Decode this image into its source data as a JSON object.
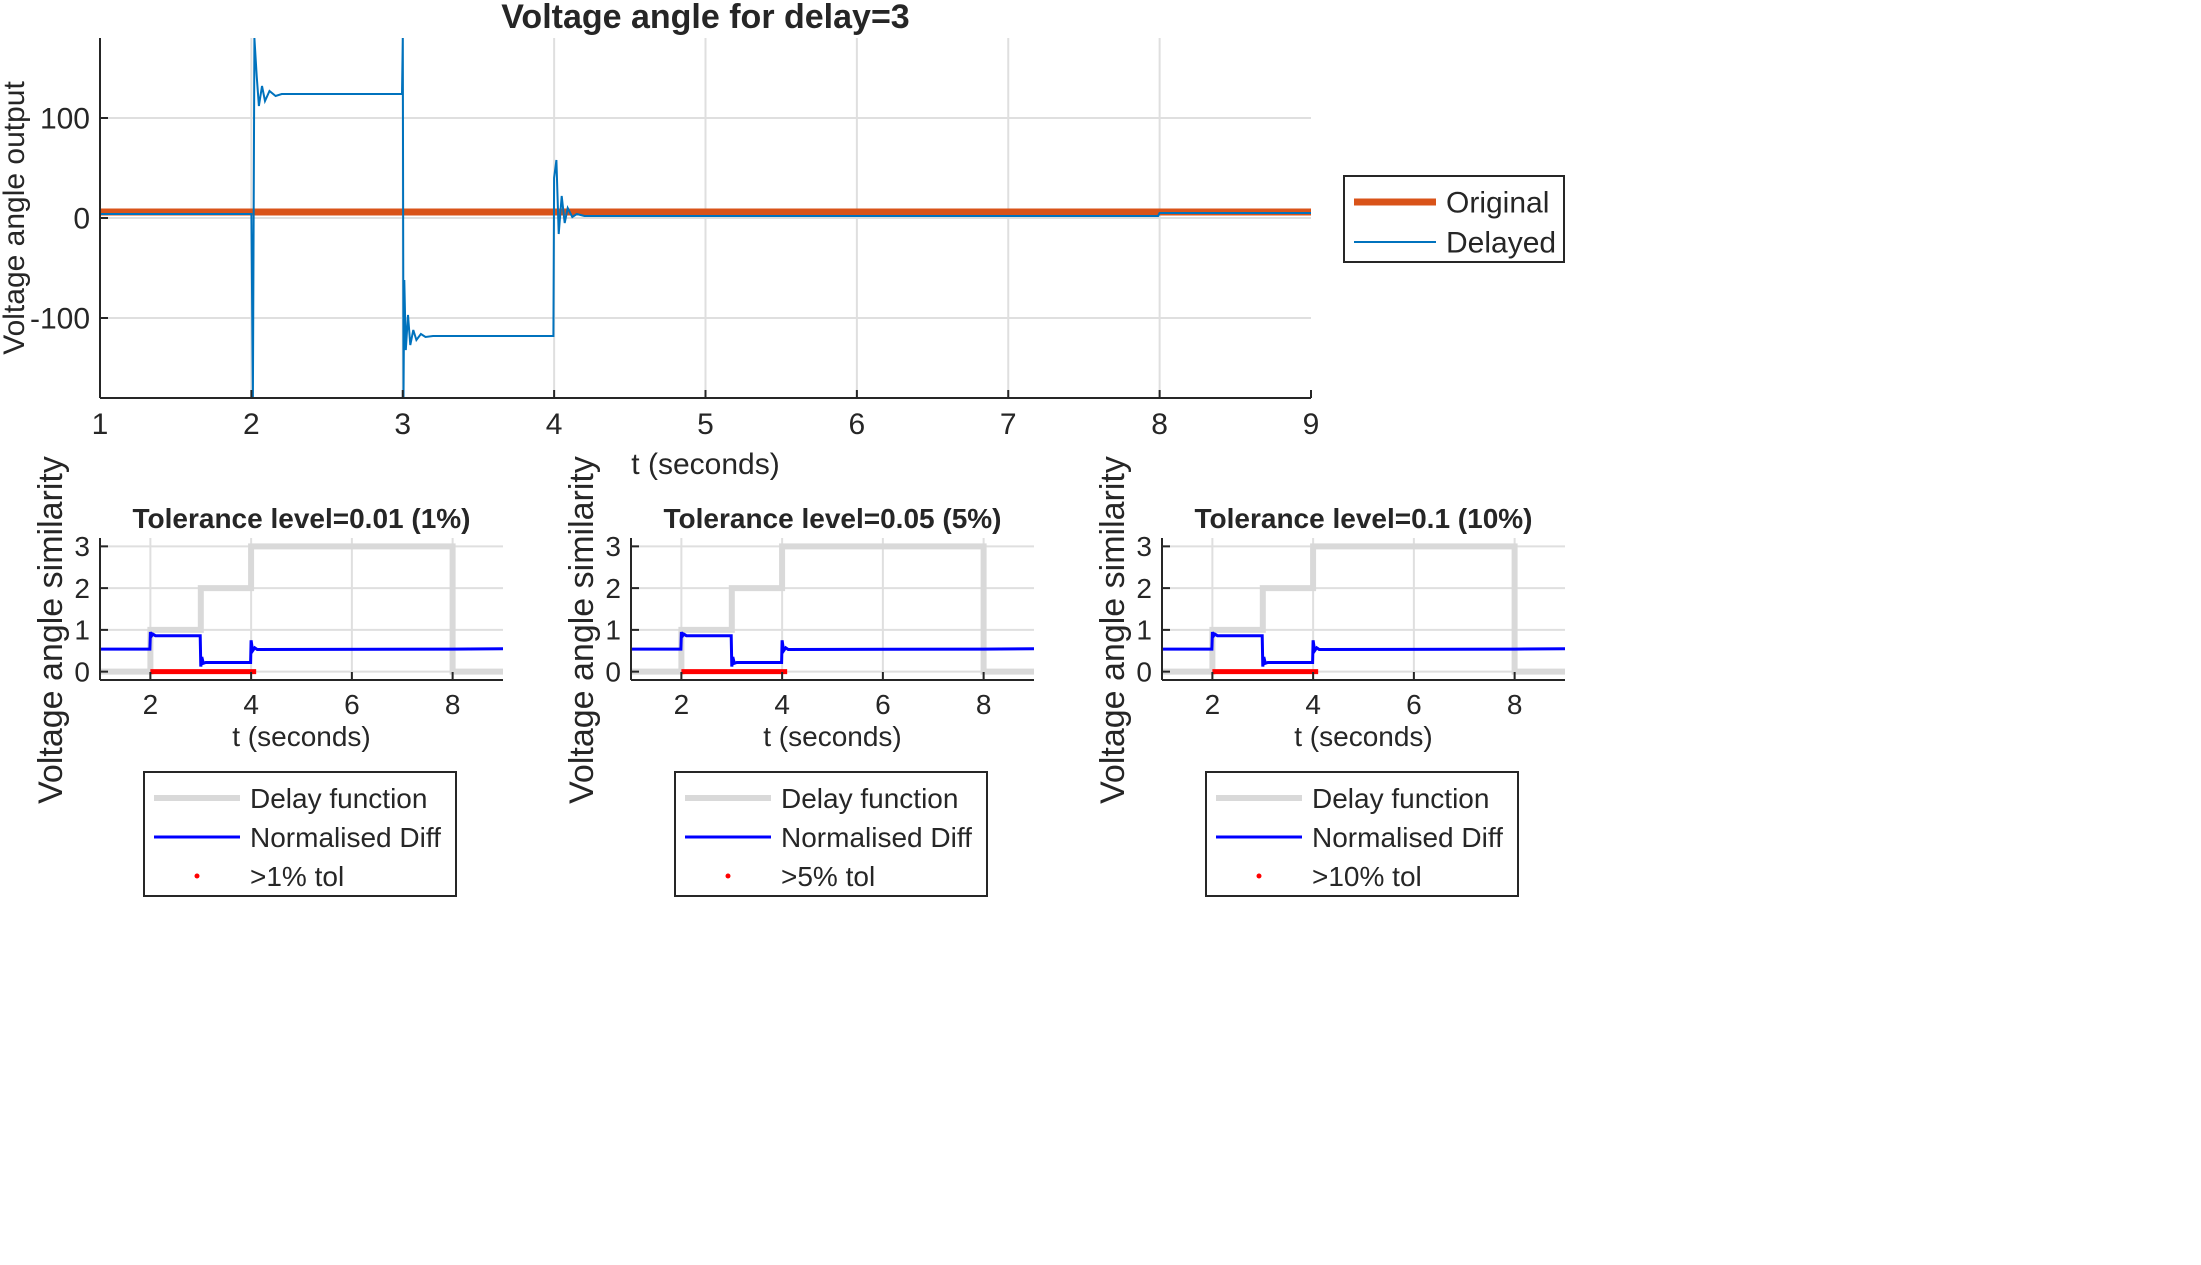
{
  "colors": {
    "original": "#D95319",
    "delayed": "#0072BD",
    "delay_function": "#D9D9D9",
    "normalised_diff": "#0000FF",
    "tol_marker": "#FF0000",
    "grid": "#DFDFDF",
    "axis": "#262626"
  },
  "chart_data": [
    {
      "type": "line",
      "title": "Voltage angle for delay=3",
      "xlabel": "t (seconds)",
      "ylabel": "Voltage angle output",
      "xlim": [
        1,
        9
      ],
      "ylim": [
        -180,
        180
      ],
      "xticks": [
        1,
        2,
        3,
        4,
        5,
        6,
        7,
        8,
        9
      ],
      "yticks": [
        -100,
        0,
        100
      ],
      "grid": true,
      "legend_position": "right",
      "legend": [
        "Original",
        "Delayed"
      ],
      "series": [
        {
          "name": "Original",
          "x": [
            1,
            9
          ],
          "y": [
            6,
            6
          ]
        },
        {
          "name": "Delayed",
          "x": [
            1,
            2,
            2.01,
            2.02,
            2.035,
            2.05,
            2.07,
            2.09,
            2.12,
            2.16,
            2.2,
            2.3,
            2.995,
            3.0,
            3.005,
            3.01,
            3.02,
            3.035,
            3.05,
            3.07,
            3.09,
            3.12,
            3.15,
            3.2,
            3.3,
            3.995,
            4.0,
            4.015,
            4.03,
            4.05,
            4.07,
            4.09,
            4.12,
            4.15,
            4.2,
            4.3,
            7.99,
            8.0,
            8.05,
            9
          ],
          "y": [
            4,
            4,
            -180,
            180,
            142,
            112,
            132,
            117,
            127,
            122,
            124,
            124,
            124,
            180,
            -180,
            -62,
            -132,
            -97,
            -127,
            -112,
            -122,
            -116,
            -119,
            -118,
            -118,
            -118,
            40,
            58,
            -16,
            22,
            -5,
            10,
            1,
            4,
            2,
            2,
            2,
            5,
            5,
            5
          ]
        }
      ]
    },
    {
      "type": "line",
      "title": "Tolerance level=0.01 (1%)",
      "xlabel": "t (seconds)",
      "ylabel": "Voltage angle similarity",
      "xlim": [
        1,
        9
      ],
      "ylim": [
        -0.2,
        3.2
      ],
      "xticks": [
        2,
        4,
        6,
        8
      ],
      "yticks": [
        0,
        1,
        2,
        3
      ],
      "grid": true,
      "legend_position": "bottom",
      "legend": [
        "Delay function",
        "Normalised Diff",
        ">1% tol"
      ],
      "series": [
        {
          "name": "Delay function",
          "x": [
            1,
            2,
            2,
            3,
            3,
            4,
            4,
            8,
            8,
            9
          ],
          "y": [
            0,
            0,
            1,
            1,
            2,
            2,
            3,
            3,
            0,
            0
          ]
        },
        {
          "name": "Normalised Diff",
          "x": [
            1,
            1.99,
            2.0,
            2.02,
            2.05,
            2.1,
            2.99,
            3.0,
            3.02,
            3.05,
            3.1,
            3.99,
            4.0,
            4.03,
            4.07,
            4.12,
            8.0,
            9
          ],
          "y": [
            0.54,
            0.54,
            0.95,
            0.85,
            0.9,
            0.86,
            0.86,
            0.12,
            0.35,
            0.2,
            0.22,
            0.22,
            0.75,
            0.5,
            0.57,
            0.53,
            0.54,
            0.55
          ]
        },
        {
          "name": ">1% tol",
          "x_range": [
            2,
            4.1
          ],
          "y": 0
        }
      ]
    },
    {
      "type": "line",
      "title": "Tolerance level=0.05 (5%)",
      "xlabel": "t (seconds)",
      "ylabel": "Voltage angle similarity",
      "xlim": [
        1,
        9
      ],
      "ylim": [
        -0.2,
        3.2
      ],
      "xticks": [
        2,
        4,
        6,
        8
      ],
      "yticks": [
        0,
        1,
        2,
        3
      ],
      "grid": true,
      "legend_position": "bottom",
      "legend": [
        "Delay function",
        "Normalised Diff",
        ">5% tol"
      ],
      "series": [
        {
          "name": "Delay function",
          "x": [
            1,
            2,
            2,
            3,
            3,
            4,
            4,
            8,
            8,
            9
          ],
          "y": [
            0,
            0,
            1,
            1,
            2,
            2,
            3,
            3,
            0,
            0
          ]
        },
        {
          "name": "Normalised Diff",
          "x": [
            1,
            1.99,
            2.0,
            2.02,
            2.05,
            2.1,
            2.99,
            3.0,
            3.02,
            3.05,
            3.1,
            3.99,
            4.0,
            4.03,
            4.07,
            4.12,
            8.0,
            9
          ],
          "y": [
            0.54,
            0.54,
            0.95,
            0.85,
            0.9,
            0.86,
            0.86,
            0.12,
            0.35,
            0.2,
            0.22,
            0.22,
            0.75,
            0.5,
            0.57,
            0.53,
            0.54,
            0.55
          ]
        },
        {
          "name": ">5% tol",
          "x_range": [
            2,
            4.1
          ],
          "y": 0
        }
      ]
    },
    {
      "type": "line",
      "title": "Tolerance level=0.1 (10%)",
      "xlabel": "t (seconds)",
      "ylabel": "Voltage angle similarity",
      "xlim": [
        1,
        9
      ],
      "ylim": [
        -0.2,
        3.2
      ],
      "xticks": [
        2,
        4,
        6,
        8
      ],
      "yticks": [
        0,
        1,
        2,
        3
      ],
      "grid": true,
      "legend_position": "bottom",
      "legend": [
        "Delay function",
        "Normalised Diff",
        ">10% tol"
      ],
      "series": [
        {
          "name": "Delay function",
          "x": [
            1,
            2,
            2,
            3,
            3,
            4,
            4,
            8,
            8,
            9
          ],
          "y": [
            0,
            0,
            1,
            1,
            2,
            2,
            3,
            3,
            0,
            0
          ]
        },
        {
          "name": "Normalised Diff",
          "x": [
            1,
            1.99,
            2.0,
            2.02,
            2.05,
            2.1,
            2.99,
            3.0,
            3.02,
            3.05,
            3.1,
            3.99,
            4.0,
            4.03,
            4.07,
            4.12,
            8.0,
            9
          ],
          "y": [
            0.54,
            0.54,
            0.95,
            0.85,
            0.9,
            0.86,
            0.86,
            0.12,
            0.35,
            0.2,
            0.22,
            0.22,
            0.75,
            0.5,
            0.57,
            0.53,
            0.54,
            0.55
          ]
        },
        {
          "name": ">10% tol",
          "x_range": [
            2,
            4.1
          ],
          "y": 0
        }
      ]
    }
  ]
}
